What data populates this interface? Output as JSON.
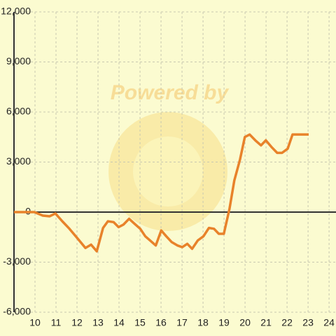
{
  "chart_data": {
    "type": "line",
    "watermark": "Powered by",
    "x": [
      9,
      9.97,
      10.37,
      10.7,
      10.97,
      11.3,
      11.64,
      12.04,
      12.4,
      12.67,
      12.94,
      13.24,
      13.47,
      13.74,
      13.98,
      14.21,
      14.48,
      14.74,
      15.01,
      15.25,
      15.48,
      15.75,
      16.01,
      16.25,
      16.51,
      16.78,
      17.01,
      17.25,
      17.48,
      17.75,
      18.02,
      18.28,
      18.52,
      18.75,
      18.99,
      19.26,
      19.49,
      19.76,
      19.99,
      20.22,
      20.49,
      20.76,
      20.99,
      21.26,
      21.53,
      21.76,
      22.03,
      22.26,
      23.03
    ],
    "values": [
      0,
      0,
      -210,
      -250,
      -80,
      -550,
      -1000,
      -1600,
      -2150,
      -1950,
      -2350,
      -950,
      -550,
      -600,
      -900,
      -750,
      -400,
      -700,
      -1000,
      -1450,
      -1700,
      -2000,
      -1100,
      -1450,
      -1800,
      -2000,
      -2100,
      -1900,
      -2200,
      -1700,
      -1450,
      -950,
      -1000,
      -1300,
      -1300,
      200,
      1900,
      3150,
      4500,
      4650,
      4300,
      4000,
      4300,
      3900,
      3550,
      3550,
      3800,
      4650,
      4650
    ],
    "color": "#e8822a",
    "xlim": [
      9,
      24.33
    ],
    "xticks": [
      10,
      11,
      12,
      13,
      14,
      15,
      16,
      17,
      18,
      19,
      20,
      21,
      22,
      23,
      24
    ],
    "ylim": [
      -6000,
      12000
    ],
    "yticks": [
      {
        "value": -6000,
        "label": "-6,000"
      },
      {
        "value": -3000,
        "label": "-3,000"
      },
      0,
      {
        "value": 3000,
        "label": "3,000"
      },
      {
        "value": 6000,
        "label": "6,000"
      },
      {
        "value": 9000,
        "label": "9,000"
      },
      {
        "value": 12000,
        "label": "12,000"
      }
    ],
    "grid": true
  }
}
